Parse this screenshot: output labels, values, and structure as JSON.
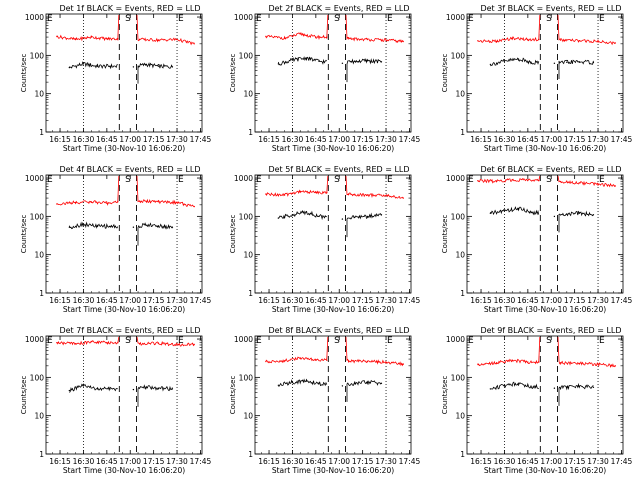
{
  "figure": {
    "ylabel": "Counts/sec",
    "xlabel": "Start Time (30-Nov-10 16:06:20)",
    "x_ticks": [
      "16:15",
      "16:30",
      "16:45",
      "17:00",
      "17:15",
      "17:30",
      "17:45"
    ],
    "y_ticks": [
      "1",
      "10",
      "100",
      "1000"
    ],
    "markers": {
      "E": "E",
      "S": "S"
    },
    "colors": {
      "events": "#000000",
      "lld": "#ff0000",
      "axis": "#000000"
    }
  },
  "chart_data": [
    {
      "type": "line",
      "title": "Det 1f BLACK = Events, RED = LLD",
      "xlim": [
        "16:06",
        "17:45"
      ],
      "ylim": [
        1,
        1200
      ],
      "yscale": "log",
      "series": [
        {
          "name": "Events",
          "color": "#000000",
          "x": [
            "16:21",
            "16:30",
            "16:39",
            "16:47",
            "17:02",
            "17:10",
            "17:18",
            "17:27"
          ],
          "values": [
            48,
            60,
            52,
            52,
            50,
            58,
            52,
            50
          ]
        },
        {
          "name": "LLD",
          "color": "#ff0000",
          "x": [
            "16:13",
            "16:25",
            "16:35",
            "16:45",
            "16:52",
            "17:06",
            "17:18",
            "17:30",
            "17:41"
          ],
          "values": [
            310,
            260,
            300,
            270,
            270,
            260,
            250,
            260,
            200
          ]
        }
      ]
    },
    {
      "type": "line",
      "title": "Det 2f BLACK = Events, RED = LLD",
      "xlim": [
        "16:06",
        "17:45"
      ],
      "ylim": [
        1,
        1200
      ],
      "yscale": "log",
      "series": [
        {
          "name": "Events",
          "color": "#000000",
          "x": [
            "16:21",
            "16:30",
            "16:39",
            "16:47",
            "17:02",
            "17:10",
            "17:18",
            "17:27"
          ],
          "values": [
            60,
            75,
            85,
            70,
            62,
            70,
            72,
            68
          ]
        },
        {
          "name": "LLD",
          "color": "#ff0000",
          "x": [
            "16:13",
            "16:25",
            "16:35",
            "16:45",
            "16:52",
            "17:06",
            "17:18",
            "17:30",
            "17:41"
          ],
          "values": [
            310,
            280,
            360,
            300,
            300,
            270,
            260,
            250,
            230
          ]
        }
      ]
    },
    {
      "type": "line",
      "title": "Det 3f BLACK = Events, RED = LLD",
      "xlim": [
        "16:06",
        "17:45"
      ],
      "ylim": [
        1,
        1200
      ],
      "yscale": "log",
      "series": [
        {
          "name": "Events",
          "color": "#000000",
          "x": [
            "16:21",
            "16:30",
            "16:39",
            "16:47",
            "17:02",
            "17:10",
            "17:18",
            "17:27"
          ],
          "values": [
            58,
            70,
            80,
            66,
            62,
            66,
            68,
            65
          ]
        },
        {
          "name": "LLD",
          "color": "#ff0000",
          "x": [
            "16:13",
            "16:25",
            "16:35",
            "16:45",
            "16:52",
            "17:06",
            "17:18",
            "17:30",
            "17:41"
          ],
          "values": [
            240,
            230,
            280,
            260,
            260,
            250,
            240,
            230,
            210
          ]
        }
      ]
    },
    {
      "type": "line",
      "title": "Det 4f BLACK = Events, RED = LLD",
      "xlim": [
        "16:06",
        "17:45"
      ],
      "ylim": [
        1,
        1200
      ],
      "yscale": "log",
      "series": [
        {
          "name": "Events",
          "color": "#000000",
          "x": [
            "16:21",
            "16:30",
            "16:39",
            "16:47",
            "17:02",
            "17:10",
            "17:18",
            "17:27"
          ],
          "values": [
            52,
            62,
            55,
            55,
            52,
            60,
            56,
            52
          ]
        },
        {
          "name": "LLD",
          "color": "#ff0000",
          "x": [
            "16:13",
            "16:25",
            "16:35",
            "16:45",
            "16:52",
            "17:06",
            "17:18",
            "17:30",
            "17:41"
          ],
          "values": [
            210,
            230,
            240,
            220,
            240,
            250,
            240,
            230,
            180
          ]
        }
      ]
    },
    {
      "type": "line",
      "title": "Det 5f BLACK = Events, RED = LLD",
      "xlim": [
        "16:06",
        "17:45"
      ],
      "ylim": [
        1,
        1200
      ],
      "yscale": "log",
      "series": [
        {
          "name": "Events",
          "color": "#000000",
          "x": [
            "16:21",
            "16:30",
            "16:39",
            "16:47",
            "17:02",
            "17:10",
            "17:18",
            "17:27"
          ],
          "values": [
            90,
            110,
            130,
            100,
            85,
            95,
            100,
            110
          ]
        },
        {
          "name": "LLD",
          "color": "#ff0000",
          "x": [
            "16:13",
            "16:25",
            "16:35",
            "16:45",
            "16:52",
            "17:06",
            "17:18",
            "17:30",
            "17:41"
          ],
          "values": [
            380,
            360,
            450,
            420,
            420,
            380,
            360,
            350,
            300
          ]
        }
      ]
    },
    {
      "type": "line",
      "title": "Det 6f BLACK = Events, RED = LLD",
      "xlim": [
        "16:06",
        "17:45"
      ],
      "ylim": [
        1,
        1200
      ],
      "yscale": "log",
      "series": [
        {
          "name": "Events",
          "color": "#000000",
          "x": [
            "16:21",
            "16:30",
            "16:39",
            "16:47",
            "17:02",
            "17:10",
            "17:18",
            "17:27"
          ],
          "values": [
            120,
            140,
            160,
            130,
            100,
            115,
            120,
            110
          ]
        },
        {
          "name": "LLD",
          "color": "#ff0000",
          "x": [
            "16:13",
            "16:25",
            "16:35",
            "16:45",
            "16:52",
            "17:06",
            "17:18",
            "17:30",
            "17:41"
          ],
          "values": [
            850,
            820,
            900,
            880,
            850,
            800,
            750,
            700,
            620
          ]
        }
      ]
    },
    {
      "type": "line",
      "title": "Det 7f BLACK = Events, RED = LLD",
      "xlim": [
        "16:06",
        "17:45"
      ],
      "ylim": [
        1,
        1200
      ],
      "yscale": "log",
      "series": [
        {
          "name": "Events",
          "color": "#000000",
          "x": [
            "16:21",
            "16:30",
            "16:39",
            "16:47",
            "17:02",
            "17:10",
            "17:18",
            "17:27"
          ],
          "values": [
            45,
            60,
            50,
            50,
            48,
            55,
            52,
            50
          ]
        },
        {
          "name": "LLD",
          "color": "#ff0000",
          "x": [
            "16:13",
            "16:25",
            "16:35",
            "16:45",
            "16:52",
            "17:06",
            "17:18",
            "17:30",
            "17:41"
          ],
          "values": [
            800,
            750,
            850,
            800,
            800,
            750,
            780,
            700,
            720
          ]
        }
      ]
    },
    {
      "type": "line",
      "title": "Det 8f BLACK = Events, RED = LLD",
      "xlim": [
        "16:06",
        "17:45"
      ],
      "ylim": [
        1,
        1200
      ],
      "yscale": "log",
      "series": [
        {
          "name": "Events",
          "color": "#000000",
          "x": [
            "16:21",
            "16:30",
            "16:39",
            "16:47",
            "17:02",
            "17:10",
            "17:18",
            "17:27"
          ],
          "values": [
            62,
            75,
            80,
            68,
            60,
            68,
            75,
            70
          ]
        },
        {
          "name": "LLD",
          "color": "#ff0000",
          "x": [
            "16:13",
            "16:25",
            "16:35",
            "16:45",
            "16:52",
            "17:06",
            "17:18",
            "17:30",
            "17:41"
          ],
          "values": [
            260,
            270,
            320,
            280,
            280,
            270,
            260,
            250,
            220
          ]
        }
      ]
    },
    {
      "type": "line",
      "title": "Det 9f BLACK = Events, RED = LLD",
      "xlim": [
        "16:06",
        "17:45"
      ],
      "ylim": [
        1,
        1200
      ],
      "yscale": "log",
      "series": [
        {
          "name": "Events",
          "color": "#000000",
          "x": [
            "16:21",
            "16:30",
            "16:39",
            "16:47",
            "17:02",
            "17:10",
            "17:18",
            "17:27"
          ],
          "values": [
            50,
            62,
            70,
            58,
            52,
            56,
            58,
            55
          ]
        },
        {
          "name": "LLD",
          "color": "#ff0000",
          "x": [
            "16:13",
            "16:25",
            "16:35",
            "16:45",
            "16:52",
            "17:06",
            "17:18",
            "17:30",
            "17:41"
          ],
          "values": [
            220,
            240,
            280,
            250,
            250,
            240,
            230,
            220,
            200
          ]
        }
      ]
    }
  ]
}
